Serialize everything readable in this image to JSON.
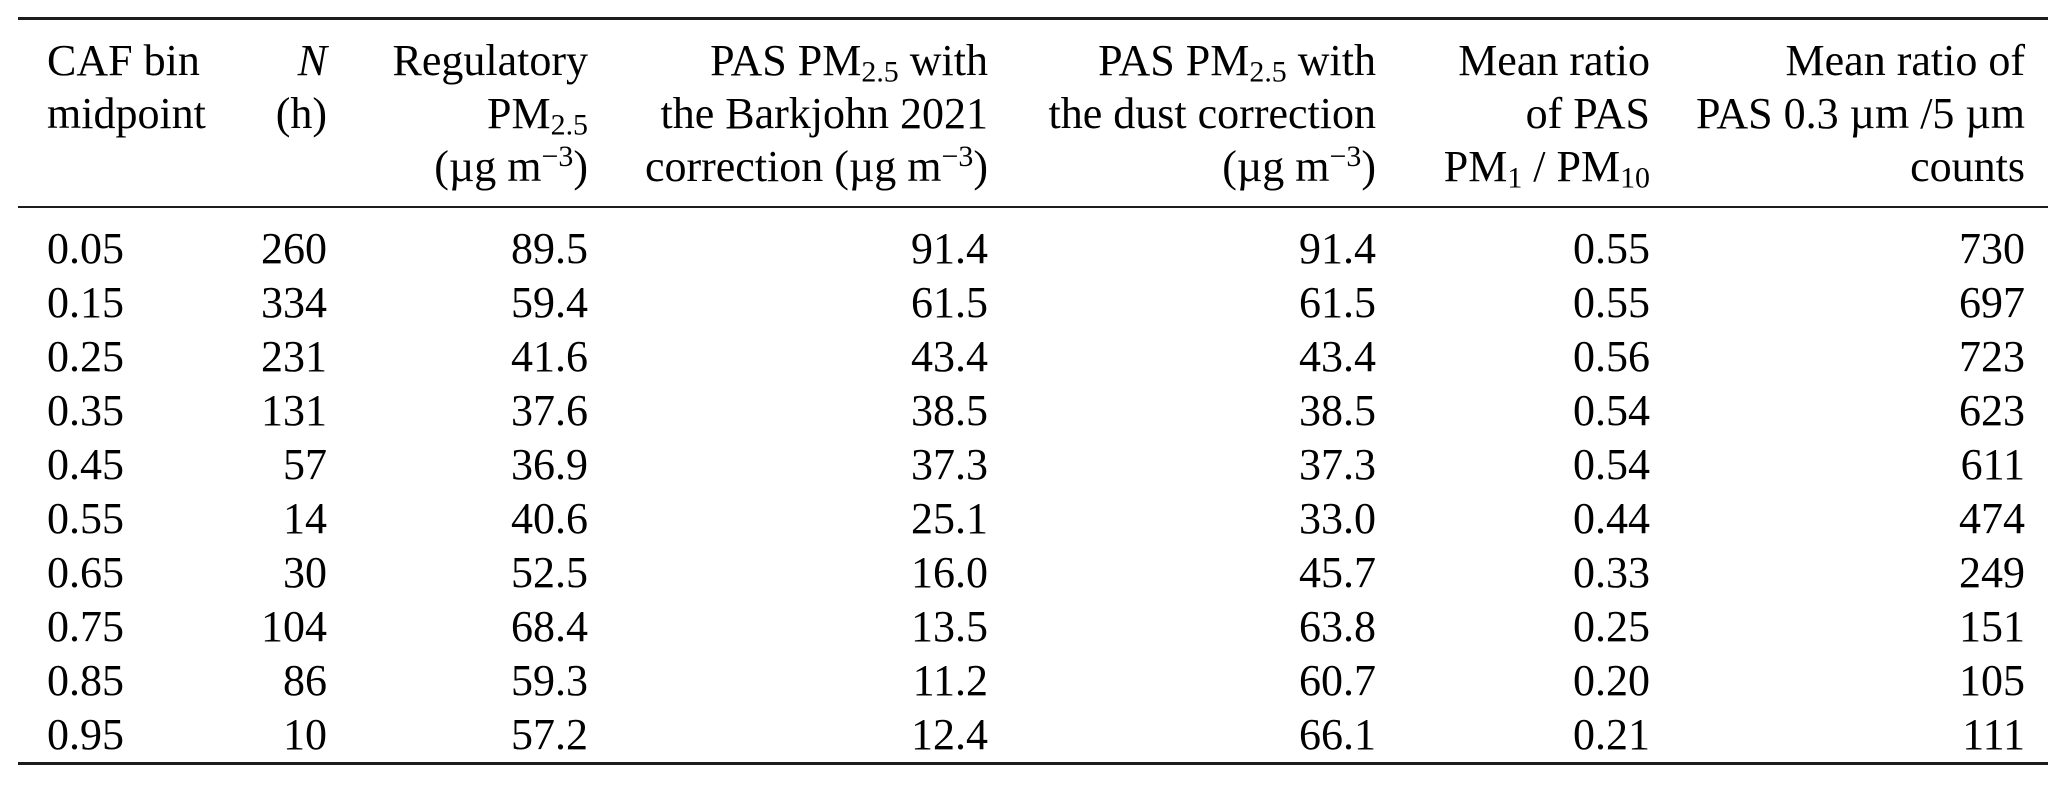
{
  "page": {
    "background_color": "#ffffff",
    "text_color": "#000000",
    "rule_color": "#1c1c1c"
  },
  "table": {
    "columns": [
      {
        "key": "caf_bin_midpoint",
        "align": "left",
        "header": [
          "CAF bin",
          "midpoint",
          ""
        ]
      },
      {
        "key": "n_hours",
        "align": "right",
        "header": [
          "<i>N</i>",
          "(h)",
          ""
        ]
      },
      {
        "key": "regulatory_pm25",
        "align": "right",
        "header": [
          "Regulatory",
          "PM<sub>2.5</sub>",
          "(µg m<sup>−3</sup>)"
        ]
      },
      {
        "key": "pas_pm25_barkjohn",
        "align": "right",
        "header": [
          "PAS PM<sub>2.5</sub> with",
          "the Barkjohn 2021",
          "correction (µg m<sup>−3</sup>)"
        ]
      },
      {
        "key": "pas_pm25_dust",
        "align": "right",
        "header": [
          "PAS PM<sub>2.5</sub> with",
          "the dust correction",
          "(µg m<sup>−3</sup>)"
        ]
      },
      {
        "key": "mean_ratio_pm1_pm10",
        "align": "right",
        "header": [
          "Mean ratio",
          "of PAS",
          "PM<sub>1</sub> / PM<sub>10</sub>"
        ]
      },
      {
        "key": "mean_ratio_counts",
        "align": "right",
        "header": [
          "Mean ratio of",
          "PAS 0.3 µm /5 µm",
          "counts"
        ]
      }
    ],
    "rows": [
      [
        "0.05",
        "260",
        "89.5",
        "91.4",
        "91.4",
        "0.55",
        "730"
      ],
      [
        "0.15",
        "334",
        "59.4",
        "61.5",
        "61.5",
        "0.55",
        "697"
      ],
      [
        "0.25",
        "231",
        "41.6",
        "43.4",
        "43.4",
        "0.56",
        "723"
      ],
      [
        "0.35",
        "131",
        "37.6",
        "38.5",
        "38.5",
        "0.54",
        "623"
      ],
      [
        "0.45",
        "57",
        "36.9",
        "37.3",
        "37.3",
        "0.54",
        "611"
      ],
      [
        "0.55",
        "14",
        "40.6",
        "25.1",
        "33.0",
        "0.44",
        "474"
      ],
      [
        "0.65",
        "30",
        "52.5",
        "16.0",
        "45.7",
        "0.33",
        "249"
      ],
      [
        "0.75",
        "104",
        "68.4",
        "13.5",
        "63.8",
        "0.25",
        "151"
      ],
      [
        "0.85",
        "86",
        "59.3",
        "11.2",
        "60.7",
        "0.20",
        "105"
      ],
      [
        "0.95",
        "10",
        "57.2",
        "12.4",
        "66.1",
        "0.21",
        "111"
      ]
    ]
  }
}
